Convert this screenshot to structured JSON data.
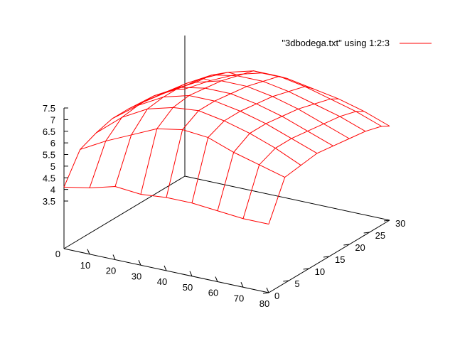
{
  "chart_data": {
    "type": "surface",
    "legend": {
      "label": "\"3dbodega.txt\" using 1:2:3",
      "position": "top-right",
      "color": "#ff0000"
    },
    "x": [
      0,
      10,
      20,
      30,
      40,
      50,
      60,
      70,
      80
    ],
    "y": [
      0,
      4,
      8,
      12,
      16,
      20,
      24,
      28,
      30
    ],
    "xlim": [
      0,
      80
    ],
    "ylim": [
      0,
      30
    ],
    "zlim": [
      3.5,
      7.5
    ],
    "xticks": [
      "10",
      "20",
      "30",
      "40",
      "50",
      "60",
      "70",
      "80"
    ],
    "yticks": [
      "0",
      "5",
      "10",
      "15",
      "20",
      "25",
      "30"
    ],
    "zticks": [
      "3.5",
      "4",
      "4.5",
      "5",
      "5.5",
      "6",
      "6.5",
      "7",
      "7.5"
    ],
    "zbase_label": "0",
    "z": [
      [
        4.1,
        4.3,
        4.6,
        4.5,
        4.6,
        4.6,
        4.5,
        4.4,
        4.4
      ],
      [
        5.3,
        5.9,
        6.4,
        6.9,
        7.1,
        7.0,
        6.6,
        6.3,
        6.0
      ],
      [
        5.6,
        6.5,
        7.1,
        7.4,
        7.5,
        7.3,
        7.0,
        6.6,
        6.1
      ],
      [
        5.8,
        6.6,
        7.2,
        7.5,
        7.5,
        7.3,
        7.0,
        6.6,
        6.2
      ],
      [
        5.8,
        6.6,
        7.2,
        7.4,
        7.4,
        7.2,
        6.9,
        6.5,
        6.1
      ],
      [
        5.7,
        6.4,
        7.0,
        7.3,
        7.3,
        7.1,
        6.8,
        6.4,
        6.0
      ],
      [
        5.6,
        6.3,
        6.9,
        7.1,
        7.1,
        6.9,
        6.6,
        6.3,
        5.9
      ],
      [
        5.4,
        6.1,
        6.6,
        6.9,
        6.9,
        6.7,
        6.4,
        6.1,
        5.7
      ],
      [
        5.2,
        5.8,
        6.3,
        6.6,
        6.6,
        6.4,
        6.2,
        5.9,
        5.5
      ]
    ],
    "grid": false,
    "line_color": "#ff0000"
  }
}
